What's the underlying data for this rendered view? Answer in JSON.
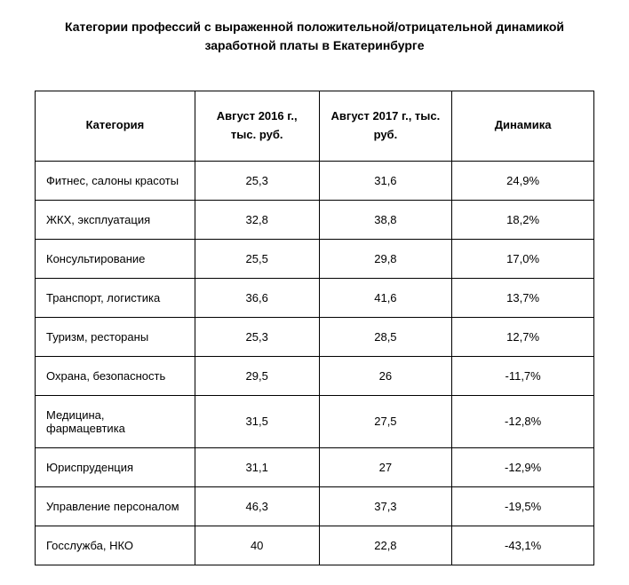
{
  "title": "Категории профессий с выраженной положительной/отрицательной динамикой заработной платы в Екатеринбурге",
  "table": {
    "columns": [
      "Категория",
      "Август 2016 г., тыс. руб.",
      "Август 2017 г., тыс. руб.",
      "Динамика"
    ],
    "rows": [
      {
        "category": "Фитнес, салоны красоты",
        "y2016": "25,3",
        "y2017": "31,6",
        "dyn": "24,9%"
      },
      {
        "category": "ЖКХ, эксплуатация",
        "y2016": "32,8",
        "y2017": "38,8",
        "dyn": "18,2%"
      },
      {
        "category": "Консультирование",
        "y2016": "25,5",
        "y2017": "29,8",
        "dyn": "17,0%"
      },
      {
        "category": "Транспорт, логистика",
        "y2016": "36,6",
        "y2017": "41,6",
        "dyn": "13,7%"
      },
      {
        "category": "Туризм, рестораны",
        "y2016": "25,3",
        "y2017": "28,5",
        "dyn": "12,7%"
      },
      {
        "category": "Охрана, безопасность",
        "y2016": "29,5",
        "y2017": "26",
        "dyn": "-11,7%"
      },
      {
        "category": "Медицина, фармацевтика",
        "y2016": "31,5",
        "y2017": "27,5",
        "dyn": "-12,8%"
      },
      {
        "category": "Юриспруденция",
        "y2016": "31,1",
        "y2017": "27",
        "dyn": "-12,9%"
      },
      {
        "category": "Управление персоналом",
        "y2016": "46,3",
        "y2017": "37,3",
        "dyn": "-19,5%"
      },
      {
        "category": "Госслужба, НКО",
        "y2016": "40",
        "y2017": "22,8",
        "dyn": "-43,1%"
      }
    ]
  }
}
